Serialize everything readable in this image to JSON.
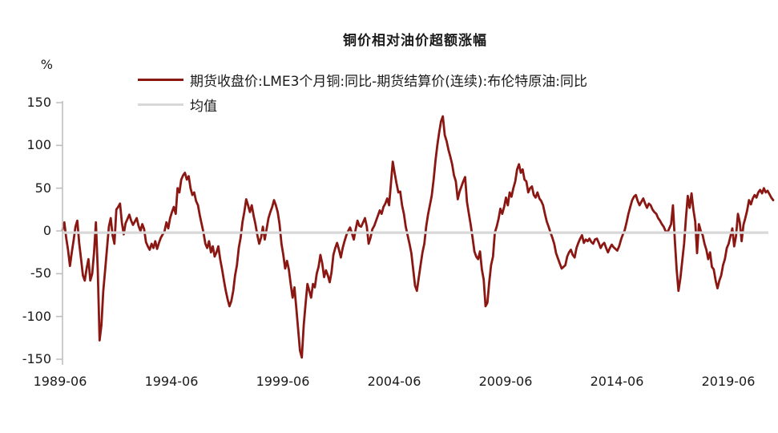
{
  "figure": {
    "title": "铜价相对油价超额涨幅",
    "y_unit_label": "%"
  },
  "legend": {
    "items": [
      {
        "label": "期货收盘价:LME3个月铜:同比-期货结算价(连续):布伦特原油:同比",
        "color": "#8B1712"
      },
      {
        "label": "均值",
        "color": "#D8D8D8"
      }
    ]
  },
  "axes": {
    "y": {
      "tick_labels": [
        "150",
        "100",
        "50",
        "0",
        "-50",
        "-100",
        "-150"
      ]
    },
    "x": {
      "tick_labels": [
        "1989-06",
        "1994-06",
        "1999-06",
        "2004-06",
        "2009-06",
        "2014-06",
        "2019-06"
      ]
    }
  },
  "colors": {
    "series_line": "#8B1712",
    "mean_line": "#D8D8D8",
    "axis_line": "#BFBFBF",
    "text": "#1a1a1a",
    "background": "#FFFFFF"
  },
  "chart_data": {
    "type": "line",
    "title": "铜价相对油价超额涨幅",
    "xlabel": "",
    "ylabel": "%",
    "ylim": [
      -150,
      150
    ],
    "yticks": [
      150,
      100,
      50,
      0,
      -50,
      -100,
      -150
    ],
    "x_tick_labels": [
      "1989-06",
      "1994-06",
      "1999-06",
      "2004-06",
      "2009-06",
      "2014-06",
      "2019-06"
    ],
    "x_start_month": "1989-06",
    "x_end_month": "2021-05",
    "frequency": "monthly",
    "grid": false,
    "legend_position": "top-center",
    "series": [
      {
        "name": "期货收盘价:LME3个月铜:同比-期货结算价(连续):布伦特原油:同比",
        "color": "#8B1712",
        "unit": "%",
        "note": "monthly values estimated from chart, first value = 1989-06",
        "values": [
          1,
          10,
          -8,
          -22,
          -41,
          -25,
          -11,
          5,
          12,
          -14,
          -33,
          -52,
          -58,
          -44,
          -33,
          -58,
          -50,
          -25,
          10,
          -45,
          -128,
          -110,
          -70,
          -45,
          -20,
          5,
          15,
          -5,
          -15,
          25,
          28,
          32,
          10,
          -4,
          9,
          14,
          19,
          12,
          7,
          11,
          15,
          6,
          0,
          8,
          2,
          -13,
          -18,
          -22,
          -15,
          -20,
          -12,
          -21,
          -14,
          -8,
          -4,
          0,
          10,
          3,
          15,
          22,
          28,
          20,
          50,
          45,
          60,
          65,
          68,
          60,
          64,
          50,
          42,
          45,
          35,
          30,
          18,
          8,
          -2,
          -15,
          -20,
          -12,
          -25,
          -18,
          -30,
          -25,
          -18,
          -33,
          -45,
          -58,
          -70,
          -80,
          -88,
          -82,
          -70,
          -52,
          -40,
          -20,
          -8,
          10,
          22,
          37,
          30,
          22,
          30,
          18,
          8,
          -5,
          -15,
          -8,
          5,
          -10,
          2,
          15,
          22,
          28,
          36,
          30,
          22,
          8,
          -15,
          -28,
          -44,
          -35,
          -45,
          -62,
          -78,
          -66,
          -90,
          -115,
          -140,
          -148,
          -110,
          -85,
          -62,
          -70,
          -78,
          -62,
          -66,
          -50,
          -42,
          -28,
          -38,
          -54,
          -46,
          -52,
          -60,
          -48,
          -28,
          -20,
          -14,
          -22,
          -31,
          -20,
          -12,
          -5,
          0,
          4,
          -3,
          -10,
          2,
          12,
          6,
          5,
          10,
          15,
          5,
          -15,
          -8,
          2,
          6,
          12,
          18,
          24,
          20,
          28,
          32,
          38,
          30,
          55,
          81,
          68,
          56,
          45,
          46,
          30,
          20,
          5,
          -5,
          -15,
          -26,
          -45,
          -64,
          -70,
          -55,
          -40,
          -25,
          -15,
          5,
          19,
          30,
          41,
          60,
          82,
          100,
          115,
          128,
          134,
          112,
          105,
          95,
          87,
          78,
          65,
          58,
          37,
          46,
          52,
          58,
          63,
          34,
          20,
          7,
          -8,
          -24,
          -30,
          -33,
          -24,
          -45,
          -57,
          -88,
          -84,
          -60,
          -40,
          -30,
          -2,
          5,
          14,
          26,
          20,
          28,
          39,
          30,
          45,
          40,
          50,
          58,
          72,
          78,
          68,
          72,
          60,
          58,
          45,
          50,
          52,
          42,
          39,
          45,
          38,
          35,
          30,
          20,
          11,
          5,
          -2,
          -8,
          -15,
          -26,
          -32,
          -38,
          -44,
          -42,
          -40,
          -30,
          -25,
          -22,
          -28,
          -31,
          -20,
          -14,
          -9,
          -5,
          -14,
          -10,
          -12,
          -9,
          -13,
          -15,
          -10,
          -9,
          -14,
          -20,
          -16,
          -14,
          -20,
          -25,
          -20,
          -16,
          -19,
          -21,
          -23,
          -18,
          -10,
          -4,
          1,
          10,
          20,
          28,
          36,
          40,
          42,
          35,
          30,
          34,
          38,
          32,
          27,
          32,
          30,
          25,
          22,
          20,
          15,
          12,
          8,
          5,
          0,
          -2,
          3,
          8,
          30,
          -10,
          -45,
          -70,
          -55,
          -35,
          -15,
          15,
          41,
          27,
          44,
          25,
          11,
          -26,
          8,
          0,
          -5,
          -15,
          -22,
          -33,
          -25,
          -42,
          -45,
          -58,
          -67,
          -58,
          -52,
          -40,
          -33,
          -20,
          -15,
          -6,
          3,
          -18,
          -6,
          20,
          10,
          -12,
          7,
          15,
          24,
          36,
          31,
          38,
          42,
          39,
          45,
          48,
          44,
          50,
          45,
          47,
          43,
          39,
          36
        ]
      },
      {
        "name": "均值",
        "color": "#D8D8D8",
        "mean_value": -2
      }
    ]
  }
}
